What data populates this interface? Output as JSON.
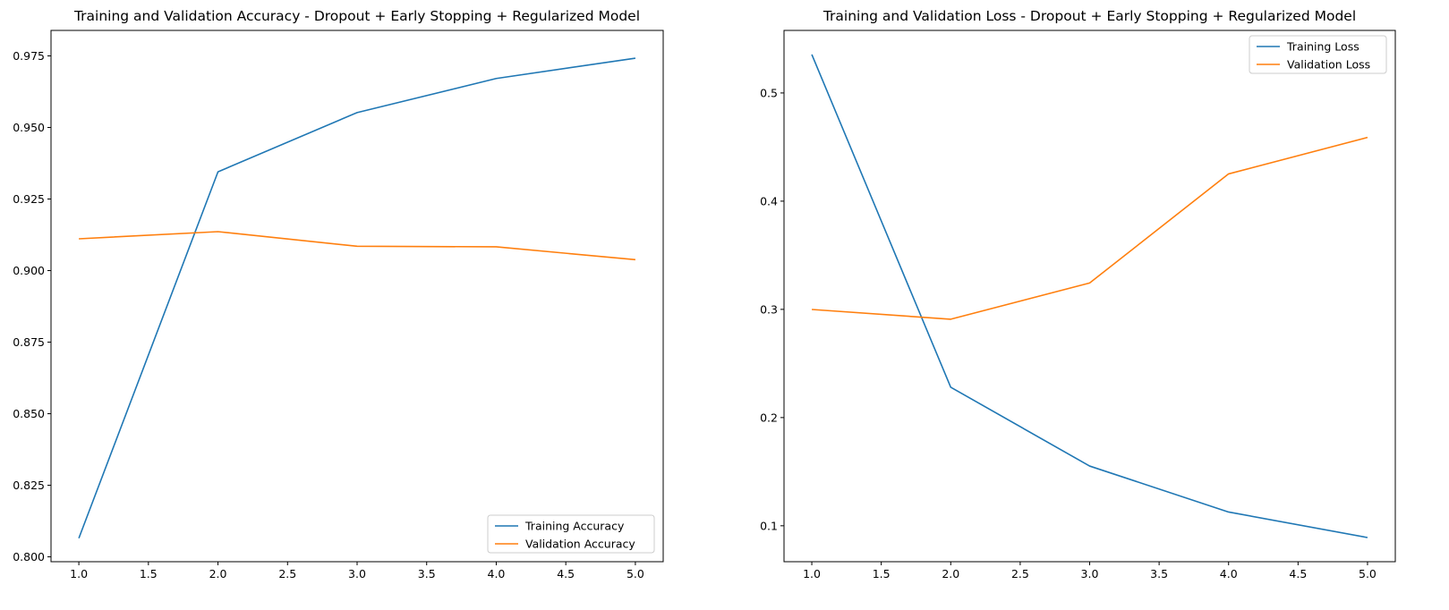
{
  "chart_data": [
    {
      "type": "line",
      "title": "Training and Validation Accuracy - Dropout + Early Stopping + Regularized Model",
      "xlabel": "",
      "ylabel": "",
      "x": [
        1,
        2,
        3,
        4,
        5
      ],
      "xlim": [
        0.8,
        5.2
      ],
      "ylim": [
        0.7983,
        0.9839
      ],
      "xticks": [
        1.0,
        1.5,
        2.0,
        2.5,
        3.0,
        3.5,
        4.0,
        4.5,
        5.0
      ],
      "xtick_labels": [
        "1.0",
        "1.5",
        "2.0",
        "2.5",
        "3.0",
        "3.5",
        "4.0",
        "4.5",
        "5.0"
      ],
      "yticks": [
        0.8,
        0.825,
        0.85,
        0.875,
        0.9,
        0.925,
        0.95,
        0.975
      ],
      "ytick_labels": [
        "0.800",
        "0.825",
        "0.850",
        "0.875",
        "0.900",
        "0.925",
        "0.950",
        "0.975"
      ],
      "grid": false,
      "legend_loc": "lower-right",
      "series": [
        {
          "name": "Training Accuracy",
          "color": "#1f77b4",
          "values": [
            0.8065,
            0.9345,
            0.9552,
            0.9671,
            0.9742
          ]
        },
        {
          "name": "Validation Accuracy",
          "color": "#ff7f0e",
          "values": [
            0.9111,
            0.9136,
            0.9085,
            0.9083,
            0.9038
          ]
        }
      ]
    },
    {
      "type": "line",
      "title": "Training and Validation Loss - Dropout + Early Stopping + Regularized Model",
      "xlabel": "",
      "ylabel": "",
      "x": [
        1,
        2,
        3,
        4,
        5
      ],
      "xlim": [
        0.8,
        5.2
      ],
      "ylim": [
        0.0668,
        0.5578
      ],
      "xticks": [
        1.0,
        1.5,
        2.0,
        2.5,
        3.0,
        3.5,
        4.0,
        4.5,
        5.0
      ],
      "xtick_labels": [
        "1.0",
        "1.5",
        "2.0",
        "2.5",
        "3.0",
        "3.5",
        "4.0",
        "4.5",
        "5.0"
      ],
      "yticks": [
        0.1,
        0.2,
        0.3,
        0.4,
        0.5
      ],
      "ytick_labels": [
        "0.1",
        "0.2",
        "0.3",
        "0.4",
        "0.5"
      ],
      "grid": false,
      "legend_loc": "upper-right",
      "series": [
        {
          "name": "Training Loss",
          "color": "#1f77b4",
          "values": [
            0.5355,
            0.228,
            0.1552,
            0.1127,
            0.0891
          ]
        },
        {
          "name": "Validation Loss",
          "color": "#ff7f0e",
          "values": [
            0.2999,
            0.2909,
            0.3244,
            0.4252,
            0.4589
          ]
        }
      ]
    }
  ]
}
